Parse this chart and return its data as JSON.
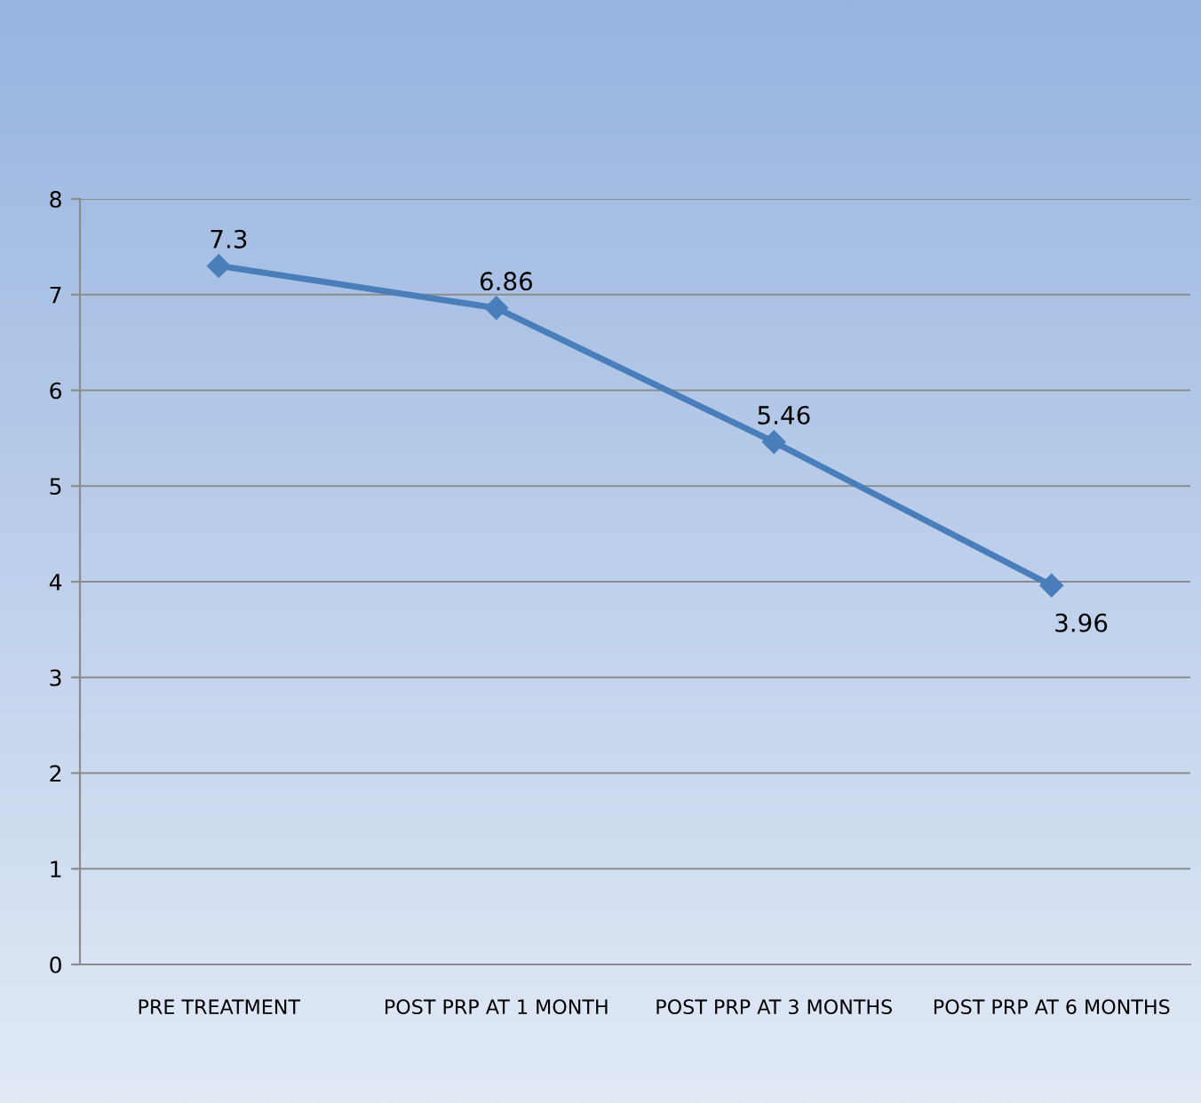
{
  "chart_data": {
    "type": "line",
    "categories": [
      "PRE TREATMENT",
      "POST PRP AT 1 MONTH",
      "POST PRP AT 3 MONTHS",
      "POST PRP AT 6 MONTHS"
    ],
    "series": [
      {
        "color": "#4a7ebb",
        "values": [
          7.3,
          6.86,
          5.46,
          3.96
        ]
      }
    ],
    "ylim": [
      0,
      8
    ],
    "yticks": [
      0,
      1,
      2,
      3,
      4,
      5,
      6,
      7,
      8
    ],
    "grid": "y",
    "marker": "diamond",
    "line_style": "solid",
    "data_labels": true
  }
}
